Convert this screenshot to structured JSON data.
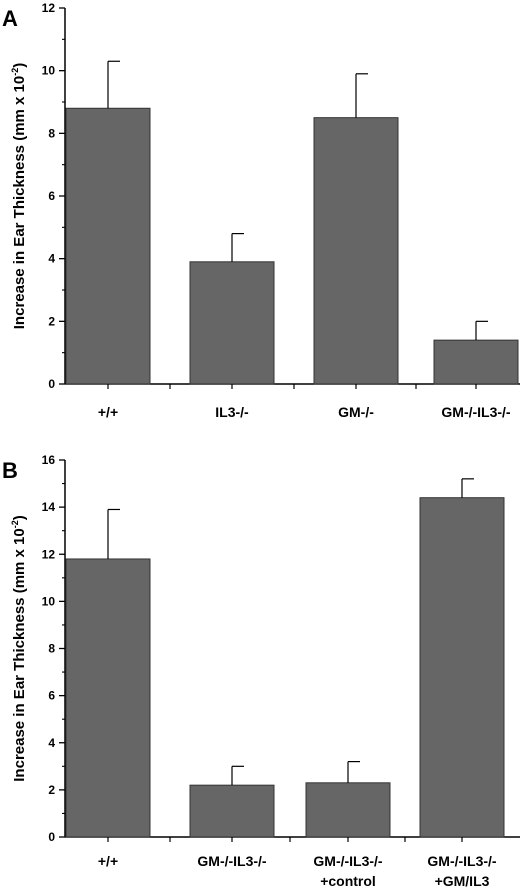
{
  "chart_data": [
    {
      "panel": "A",
      "type": "bar",
      "ylabel": "Increase in Ear Thickness (mm x 10",
      "ylabel_sup": "-2",
      "ylabel_end": ")",
      "ylim": [
        0,
        12
      ],
      "yticks": [
        0,
        2,
        4,
        6,
        8,
        10,
        12
      ],
      "categories": [
        [
          "+/+"
        ],
        [
          "IL3-/-"
        ],
        [
          "GM-/-"
        ],
        [
          "GM-/-IL3-/-"
        ]
      ],
      "values": [
        8.8,
        3.9,
        8.5,
        1.4
      ],
      "errors": [
        1.5,
        0.9,
        1.4,
        0.6
      ],
      "bar_color": "#666666"
    },
    {
      "panel": "B",
      "type": "bar",
      "ylabel": "Increase in Ear Thickness (mm x 10",
      "ylabel_sup": "-2",
      "ylabel_end": ")",
      "ylim": [
        0,
        16
      ],
      "yticks": [
        0,
        2,
        4,
        6,
        8,
        10,
        12,
        14,
        16
      ],
      "categories": [
        [
          "+/+"
        ],
        [
          "GM-/-IL3-/-"
        ],
        [
          "GM-/-IL3-/-",
          "+control"
        ],
        [
          "GM-/-IL3-/-",
          "+GM/IL3"
        ]
      ],
      "values": [
        11.8,
        2.2,
        2.3,
        14.4
      ],
      "errors": [
        2.1,
        0.8,
        0.9,
        0.8
      ],
      "bar_color": "#666666"
    }
  ]
}
